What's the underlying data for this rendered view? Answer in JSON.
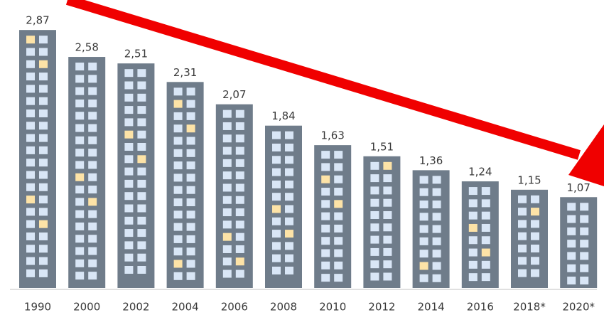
{
  "chart_data": {
    "type": "bar",
    "categories": [
      "1990",
      "2000",
      "2002",
      "2004",
      "2006",
      "2008",
      "2010",
      "2012",
      "2014",
      "2016",
      "2018*",
      "2020*"
    ],
    "values": [
      2.87,
      2.58,
      2.51,
      2.31,
      2.07,
      1.84,
      1.63,
      1.51,
      1.36,
      1.24,
      1.15,
      1.07
    ],
    "value_labels": [
      "2,87",
      "2,58",
      "2,51",
      "2,31",
      "2,07",
      "1,84",
      "1,63",
      "1,51",
      "1,36",
      "1,24",
      "1,15",
      "1,07"
    ],
    "color": "#6f7c8a"
  }
}
